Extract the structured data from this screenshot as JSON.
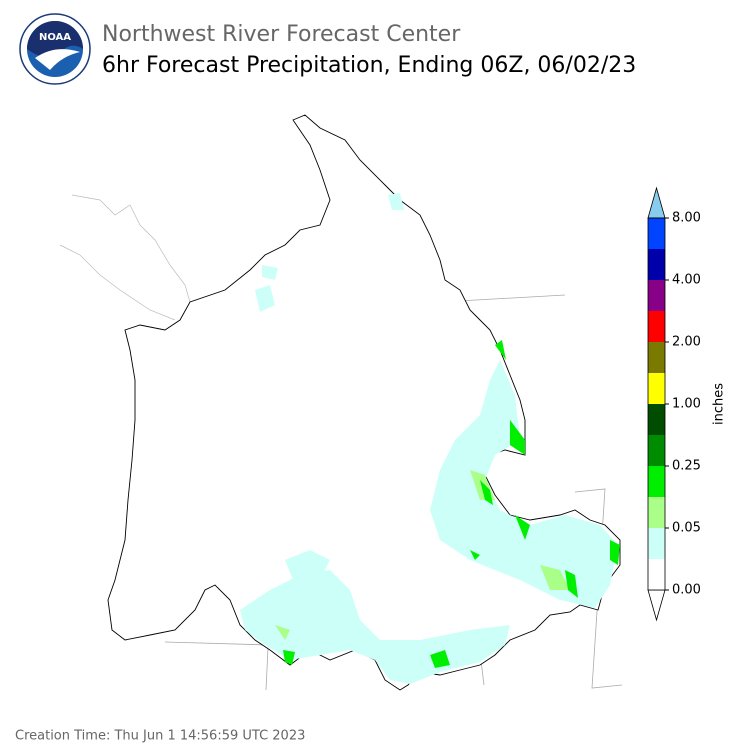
{
  "logo": {
    "text": "NOAA"
  },
  "header": {
    "organization": "Northwest River Forecast Center",
    "title": "6hr Forecast Precipitation, Ending 06Z, 06/02/23"
  },
  "colorbar": {
    "unit_label": "inches",
    "colors": [
      "#ffffff",
      "#ccfff8",
      "#aaff88",
      "#00ee00",
      "#008c00",
      "#004c00",
      "#ffff00",
      "#7a7a00",
      "#ff0000",
      "#880088",
      "#0000aa",
      "#0044ff",
      "#88ccee"
    ],
    "ticks": [
      "0.00",
      "0.05",
      "0.25",
      "1.00",
      "2.00",
      "4.00",
      "8.00"
    ]
  },
  "footer": {
    "creation_time": "Creation Time: Thu Jun 1 14:56:59 UTC 2023"
  }
}
